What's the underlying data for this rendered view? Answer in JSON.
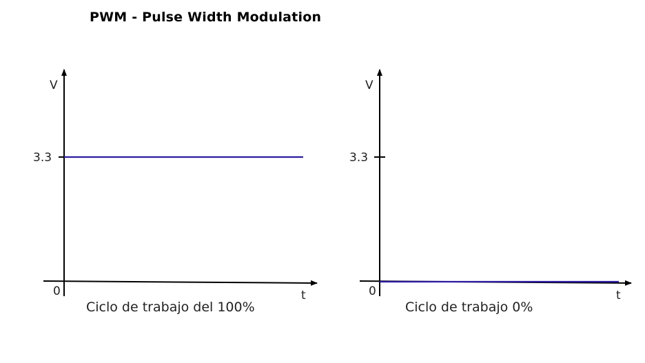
{
  "title": "PWM - Pulse Width Modulation",
  "signal_color": "#2a1aa0",
  "chart_data": [
    {
      "type": "line",
      "title": "",
      "caption": "Ciclo de trabajo del 100%",
      "ylabel": "V",
      "xlabel": "t",
      "origin_label": "0",
      "ytick_labels": [
        "3.3"
      ],
      "yticks": [
        3.3
      ],
      "ylim": [
        0,
        5
      ],
      "duty_cycle_percent": 100,
      "series": [
        {
          "x": [
            0,
            1
          ],
          "y": [
            3.3,
            3.3
          ]
        }
      ]
    },
    {
      "type": "line",
      "title": "",
      "caption": "Ciclo de trabajo 0%",
      "ylabel": "V",
      "xlabel": "t",
      "origin_label": "0",
      "ytick_labels": [
        "3.3"
      ],
      "yticks": [
        3.3
      ],
      "ylim": [
        0,
        5
      ],
      "duty_cycle_percent": 0,
      "series": [
        {
          "x": [
            0,
            1
          ],
          "y": [
            0,
            0
          ]
        }
      ]
    }
  ]
}
